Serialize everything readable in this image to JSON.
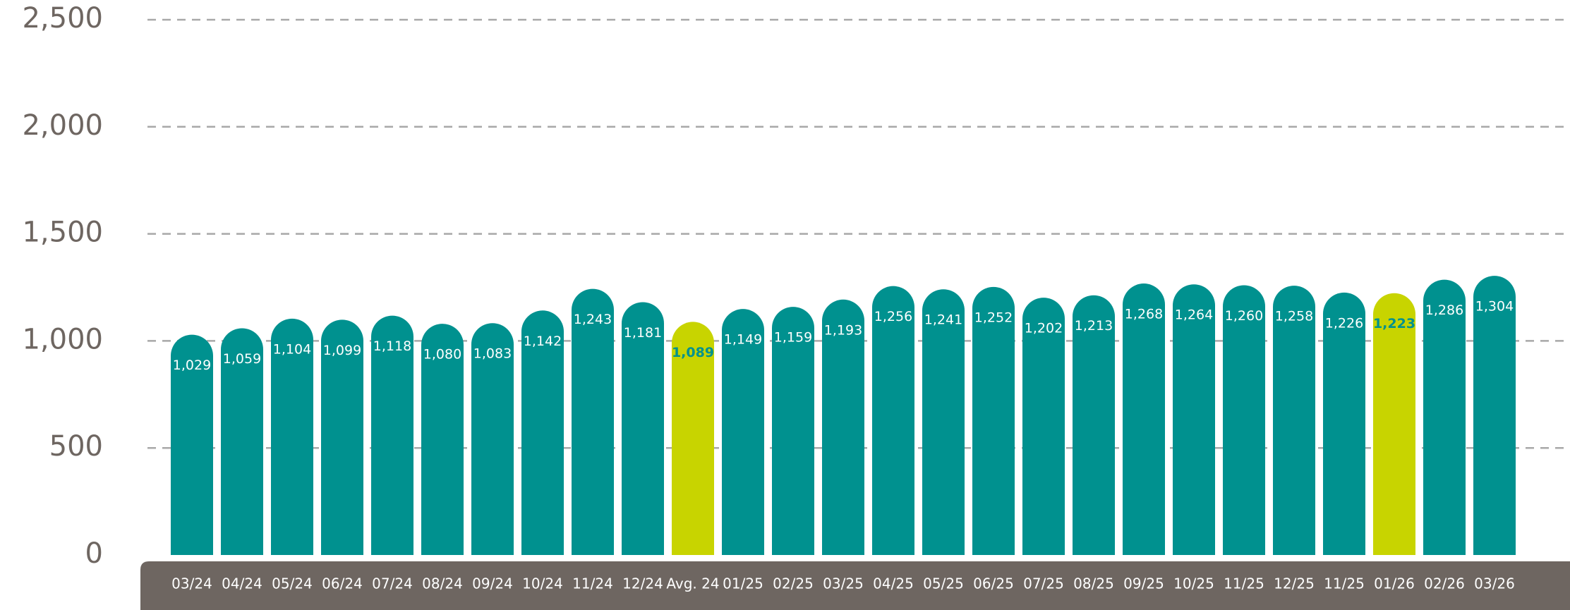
{
  "chart_data": {
    "type": "bar",
    "categories": [
      "03/24",
      "04/24",
      "05/24",
      "06/24",
      "07/24",
      "08/24",
      "09/24",
      "10/24",
      "11/24",
      "12/24",
      "Avg. 24",
      "01/25",
      "02/25",
      "03/25",
      "04/25",
      "05/25",
      "06/25",
      "07/25",
      "08/25",
      "09/25",
      "10/25",
      "11/25",
      "12/25",
      "11/25",
      "01/26",
      "02/26",
      "03/26"
    ],
    "values": [
      1029,
      1059,
      1104,
      1099,
      1118,
      1080,
      1083,
      1142,
      1243,
      1181,
      1089,
      1149,
      1159,
      1193,
      1256,
      1241,
      1252,
      1202,
      1213,
      1268,
      1264,
      1260,
      1258,
      1226,
      1223,
      1286,
      1304
    ],
    "value_labels": [
      "1,029",
      "1,059",
      "1,104",
      "1,099",
      "1,118",
      "1,080",
      "1,083",
      "1,142",
      "1,243",
      "1,181",
      "1,089",
      "1,149",
      "1,159",
      "1,193",
      "1,256",
      "1,241",
      "1,252",
      "1,202",
      "1,213",
      "1,268",
      "1,264",
      "1,260",
      "1,258",
      "1,226",
      "1,223",
      "1,286",
      "1,304"
    ],
    "color": "#00918f",
    "colors": [
      "#00918f",
      "#00918f",
      "#00918f",
      "#00918f",
      "#00918f",
      "#00918f",
      "#00918f",
      "#00918f",
      "#00918f",
      "#00918f",
      "#c8d400",
      "#00918f",
      "#00918f",
      "#00918f",
      "#00918f",
      "#00918f",
      "#00918f",
      "#00918f",
      "#00918f",
      "#00918f",
      "#00918f",
      "#00918f",
      "#00918f",
      "#00918f",
      "#c8d400",
      "#00918f",
      "#00918f"
    ],
    "ylim": [
      0,
      2500
    ],
    "yticks": [
      0,
      500,
      {
        "value": 1000,
        "label": "1,000"
      },
      {
        "value": 1500,
        "label": "1,500"
      },
      {
        "value": 2000,
        "label": "2,000"
      },
      {
        "value": 2500,
        "label": "2,500"
      }
    ],
    "grid": true
  }
}
